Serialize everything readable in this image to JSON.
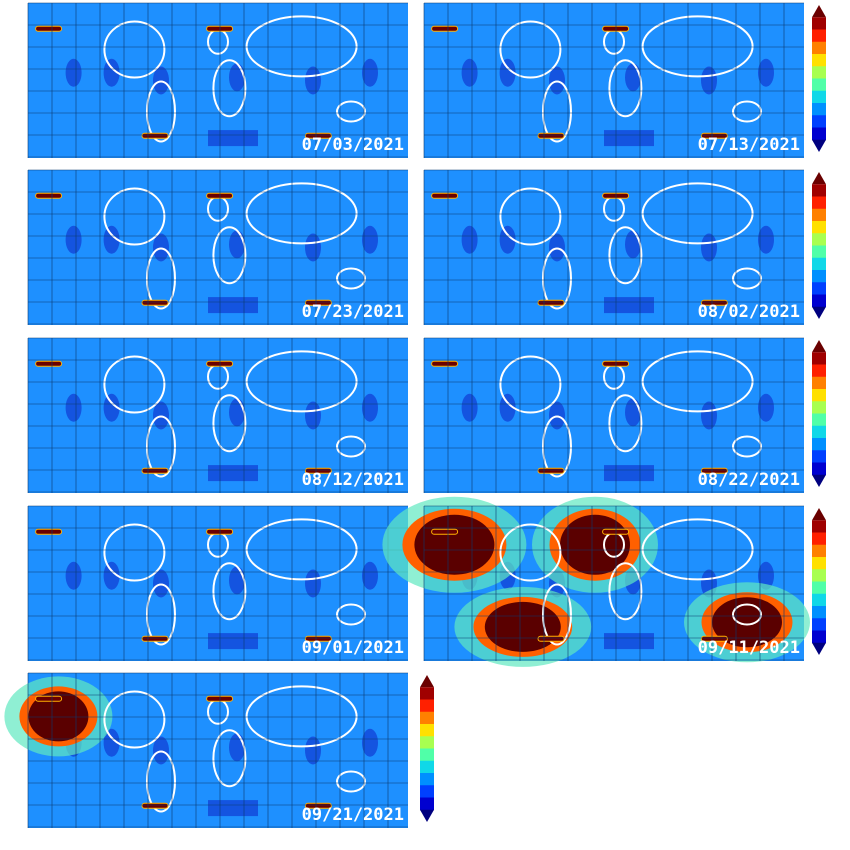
{
  "panels": [
    {
      "date": "07/03/2021"
    },
    {
      "date": "07/13/2021"
    },
    {
      "date": "07/23/2021"
    },
    {
      "date": "08/02/2021"
    },
    {
      "date": "08/12/2021"
    },
    {
      "date": "08/22/2021"
    },
    {
      "date": "09/01/2021"
    },
    {
      "date": "09/11/2021"
    },
    {
      "date": "09/21/2021"
    }
  ]
}
